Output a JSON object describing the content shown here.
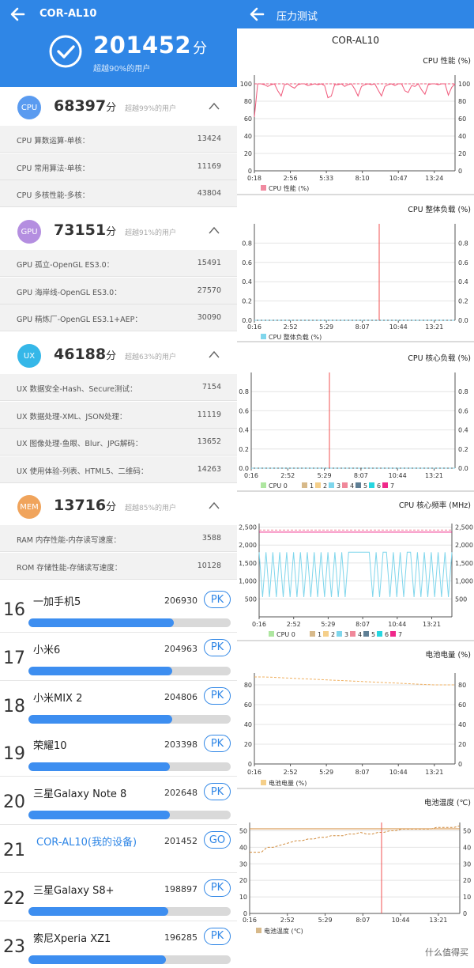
{
  "left": {
    "header": {
      "title": "COR-AL10",
      "total_score": "201452",
      "score_unit": "分",
      "beat_text": "超越90%的用户"
    },
    "sections": [
      {
        "badge": "CPU",
        "color": "#5a9bf0",
        "score": "68397",
        "unit": "分",
        "percent": "超越99%的用户",
        "rows": [
          {
            "label": "CPU 算数运算-单核：",
            "value": "13424"
          },
          {
            "label": "CPU 常用算法-单核：",
            "value": "11169"
          },
          {
            "label": "CPU 多核性能-多核：",
            "value": "43804"
          }
        ]
      },
      {
        "badge": "GPU",
        "color": "#b48ee0",
        "score": "73151",
        "unit": "分",
        "percent": "超越91%的用户",
        "rows": [
          {
            "label": "GPU 孤立-OpenGL ES3.0：",
            "value": "15491"
          },
          {
            "label": "GPU 海岸线-OpenGL ES3.0：",
            "value": "27570"
          },
          {
            "label": "GPU 精炼厂-OpenGL ES3.1+AEP：",
            "value": "30090"
          }
        ]
      },
      {
        "badge": "UX",
        "color": "#35b7e8",
        "score": "46188",
        "unit": "分",
        "percent": "超越63%的用户",
        "rows": [
          {
            "label": "UX 数据安全-Hash、Secure测试：",
            "value": "7154"
          },
          {
            "label": "UX 数据处理-XML、JSON处理：",
            "value": "11119"
          },
          {
            "label": "UX 图像处理-鱼眼、Blur、JPG解码：",
            "value": "13652"
          },
          {
            "label": "UX 使用体验-列表、HTML5、二维码：",
            "value": "14263"
          }
        ]
      },
      {
        "badge": "MEM",
        "color": "#f0a45c",
        "score": "13716",
        "unit": "分",
        "percent": "超越85%的用户",
        "rows": [
          {
            "label": "RAM 内存性能-内存读写速度：",
            "value": "3588"
          },
          {
            "label": "ROM 存储性能-存储读写速度：",
            "value": "10128"
          }
        ]
      }
    ],
    "ranking": [
      {
        "rank": "16",
        "name": "一加手机5",
        "score": "206930",
        "button": "PK",
        "fill": 0.72
      },
      {
        "rank": "17",
        "name": "小米6",
        "score": "204963",
        "button": "PK",
        "fill": 0.71
      },
      {
        "rank": "18",
        "name": "小米MIX 2",
        "score": "204806",
        "button": "PK",
        "fill": 0.71
      },
      {
        "rank": "19",
        "name": "荣耀10",
        "score": "203398",
        "button": "PK",
        "fill": 0.7
      },
      {
        "rank": "20",
        "name": "三星Galaxy Note 8",
        "score": "202648",
        "button": "PK",
        "fill": 0.7
      },
      {
        "rank": "21",
        "name": "COR-AL10(我的设备)",
        "score": "201452",
        "button": "GO",
        "fill": 0,
        "mine": true
      },
      {
        "rank": "22",
        "name": "三星Galaxy S8+",
        "score": "198897",
        "button": "PK",
        "fill": 0.69
      },
      {
        "rank": "23",
        "name": "索尼Xperia XZ1",
        "score": "196285",
        "button": "PK",
        "fill": 0.68
      }
    ]
  },
  "right": {
    "header_title": "压力测试",
    "device": "COR-AL10",
    "watermark": "什么值得买"
  },
  "chart_data": [
    {
      "type": "line",
      "title": "CPU 性能 (%)",
      "x_ticks": [
        "0:18",
        "2:56",
        "5:33",
        "8:10",
        "10:47",
        "13:24"
      ],
      "y_ticks": [
        0,
        20,
        40,
        60,
        80,
        100
      ],
      "ylim": [
        0,
        110
      ],
      "legend": [
        {
          "name": "CPU 性能 (%)",
          "color": "#f08aa0"
        }
      ],
      "series": [
        {
          "name": "CPU 性能 (%)",
          "color": "#f0587a",
          "values": [
            62,
            100,
            100,
            99,
            97,
            99,
            100,
            92,
            86,
            99,
            100,
            97,
            95,
            99,
            100,
            100,
            98,
            99,
            100,
            99,
            100,
            98,
            84,
            86,
            99,
            99,
            100,
            97,
            99,
            100,
            94,
            86,
            97,
            99,
            100,
            99,
            100,
            93,
            86,
            97,
            99,
            100,
            98,
            100,
            100,
            92,
            90,
            98,
            97,
            100,
            93,
            88,
            99,
            100,
            100,
            99,
            100,
            100,
            87,
            96,
            100
          ]
        },
        {
          "name": "ref",
          "color": "#f0587a",
          "dashed": true,
          "values": [
            100,
            100
          ]
        }
      ]
    },
    {
      "type": "line",
      "title": "CPU 整体负载 (%)",
      "x_ticks": [
        "0:16",
        "2:52",
        "5:29",
        "8:07",
        "10:44",
        "13:21"
      ],
      "y_ticks": [
        "0.0",
        "0.2",
        "0.4",
        "0.6",
        "0.8"
      ],
      "ylim": [
        0,
        1.0
      ],
      "legend": [
        {
          "name": "CPU 整体负载 (%)",
          "color": "#7fd6ec"
        }
      ],
      "series": [
        {
          "name": "CPU 整体负载 (%)",
          "color": "#7fd6ec",
          "dashed": true,
          "values": [
            0,
            0
          ]
        }
      ]
    },
    {
      "type": "line",
      "title": "CPU 核心负载 (%)",
      "x_ticks": [
        "0:16",
        "2:52",
        "5:29",
        "8:07",
        "10:44",
        "13:21"
      ],
      "y_ticks": [
        "0.0",
        "0.2",
        "0.4",
        "0.6",
        "0.8"
      ],
      "ylim": [
        0,
        1.0
      ],
      "legend": [
        {
          "name": "CPU 0",
          "color": "#aee6a0"
        },
        {
          "name": "1",
          "color": "#d7b98a"
        },
        {
          "name": "2",
          "color": "#f5cf8a"
        },
        {
          "name": "3",
          "color": "#7fd6ec"
        },
        {
          "name": "4",
          "color": "#f0889a"
        },
        {
          "name": "5",
          "color": "#5f7f95"
        },
        {
          "name": "6",
          "color": "#26d6e0"
        },
        {
          "name": "7",
          "color": "#f0288a"
        }
      ],
      "series": [
        {
          "name": "all",
          "color": "#7fd6ec",
          "dashed": true,
          "values": [
            0,
            0
          ]
        }
      ]
    },
    {
      "type": "line",
      "title": "CPU 核心频率 (MHz)",
      "x_ticks": [
        "0:16",
        "2:52",
        "5:29",
        "8:07",
        "10:44",
        "13:21"
      ],
      "y_ticks": [
        "500",
        "1,000",
        "1,500",
        "2,000",
        "2,500"
      ],
      "ylim": [
        0,
        2600
      ],
      "legend": [
        {
          "name": "CPU 0",
          "color": "#aee6a0"
        },
        {
          "name": "1",
          "color": "#d7b98a"
        },
        {
          "name": "2",
          "color": "#f5cf8a"
        },
        {
          "name": "3",
          "color": "#7fd6ec"
        },
        {
          "name": "4",
          "color": "#f0889a"
        },
        {
          "name": "5",
          "color": "#5f7f95"
        },
        {
          "name": "6",
          "color": "#26d6e0"
        },
        {
          "name": "7",
          "color": "#f0288a"
        }
      ],
      "series": [
        {
          "name": "7",
          "color": "#f0288a",
          "values": [
            2360,
            2360
          ]
        },
        {
          "name": "4",
          "color": "#f0889a",
          "dashed": true,
          "values": [
            2420,
            2420
          ]
        },
        {
          "name": "3",
          "color": "#7fd6ec",
          "values": [
            1800,
            550,
            1800,
            550,
            1800,
            550,
            1800,
            550,
            1800,
            550,
            1800,
            550,
            1800,
            550,
            1800,
            550,
            1800,
            550,
            1800,
            550,
            1800,
            550,
            1800,
            550,
            1800,
            550,
            1800,
            1800,
            1800,
            1800,
            1800,
            1800,
            1800,
            550,
            1800,
            550,
            1800,
            1800,
            550,
            1800,
            550,
            1800,
            550,
            1800,
            1800,
            550,
            1800,
            550,
            1800,
            550,
            1800,
            550,
            1800,
            550,
            1800,
            550,
            1800
          ]
        }
      ]
    },
    {
      "type": "line",
      "title": "电池电量 (%)",
      "x_ticks": [
        "0:16",
        "2:52",
        "5:29",
        "8:07",
        "10:44",
        "13:21"
      ],
      "y_ticks": [
        0,
        20,
        40,
        60,
        80
      ],
      "ylim": [
        0,
        92
      ],
      "legend": [
        {
          "name": "电池电量 (%)",
          "color": "#f5cf8a"
        }
      ],
      "series": [
        {
          "name": "电池电量 (%)",
          "color": "#f0b060",
          "dashed": true,
          "values": [
            88,
            88,
            87.5,
            87,
            86.5,
            86,
            85.5,
            85,
            84.5,
            84,
            83.5,
            83,
            82.5,
            82,
            81.5,
            81,
            80.5,
            80,
            80,
            80
          ]
        }
      ]
    },
    {
      "type": "line",
      "title": "电池温度 (℃)",
      "x_ticks": [
        "0:16",
        "2:52",
        "5:29",
        "8:07",
        "10:44",
        "13:21"
      ],
      "y_ticks": [
        0,
        10,
        20,
        30,
        40,
        50
      ],
      "ylim": [
        0,
        55
      ],
      "legend": [
        {
          "name": "电池温度 (℃)",
          "color": "#d7b98a"
        }
      ],
      "series": [
        {
          "name": "电池温度 (℃)",
          "color": "#d08a3a",
          "dashed": true,
          "values": [
            37,
            37,
            37,
            40,
            40,
            41,
            42,
            43,
            44,
            44,
            45,
            45,
            46,
            46,
            47,
            47,
            47,
            48,
            48,
            49,
            48,
            48,
            49,
            49,
            50,
            50,
            51,
            51,
            51,
            51,
            51,
            51,
            52,
            52,
            52,
            52,
            53
          ]
        }
      ]
    }
  ]
}
